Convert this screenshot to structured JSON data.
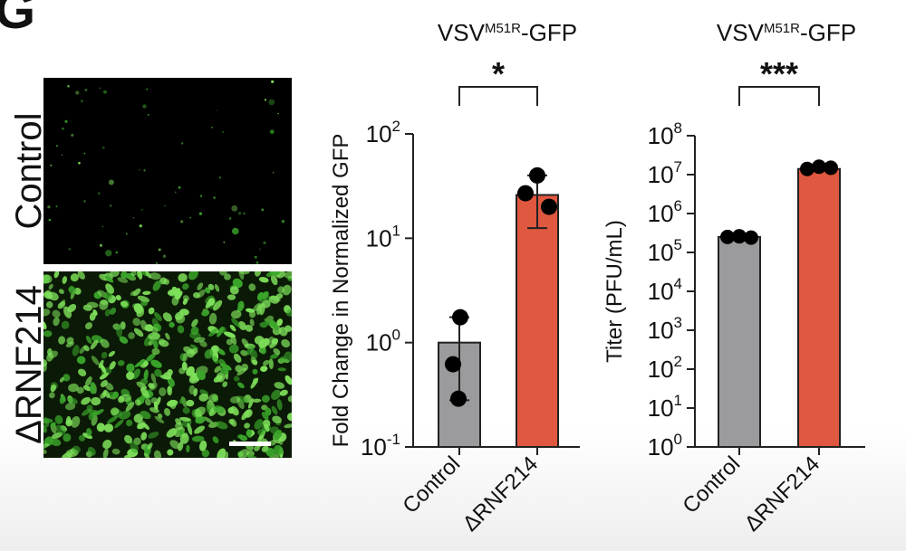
{
  "figure": {
    "panel_letter": "G",
    "micrographs": [
      {
        "label": "Control",
        "scale_bar": false
      },
      {
        "label": "ΔRNF214",
        "scale_bar": true
      }
    ]
  },
  "colors": {
    "control_bar": "#9b9b9e",
    "rnf_bar": "#e0583f",
    "gfp_bright": "#7ee05a",
    "gfp_dim": "#3aa52a"
  },
  "chart_data": [
    {
      "type": "bar",
      "title": "VSV",
      "title_sup": "M51R",
      "title_suffix": "-GFP",
      "ylabel": "Fold Change in Normalized GFP",
      "yscale": "log",
      "ylim": [
        0.1,
        100
      ],
      "yticks": [
        {
          "base": "10",
          "exp": "-1",
          "value": 0.1
        },
        {
          "base": "10",
          "exp": "0",
          "value": 1
        },
        {
          "base": "10",
          "exp": "1",
          "value": 10
        },
        {
          "base": "10",
          "exp": "2",
          "value": 100
        }
      ],
      "categories": [
        "Control",
        "ΔRNF214"
      ],
      "values": [
        1.0,
        26
      ],
      "error_low": [
        0.28,
        12.5
      ],
      "error_high": [
        1.75,
        40
      ],
      "points": [
        [
          1.75,
          0.62,
          0.29
        ],
        [
          40,
          27,
          20
        ]
      ],
      "bar_colors": [
        "#9b9b9e",
        "#e0583f"
      ],
      "significance": "*"
    },
    {
      "type": "bar",
      "title": "VSV",
      "title_sup": "M51R",
      "title_suffix": "-GFP",
      "ylabel": "Titer (PFU/mL)",
      "yscale": "log",
      "ylim": [
        1,
        100000000
      ],
      "yticks": [
        {
          "base": "10",
          "exp": "0",
          "value": 1
        },
        {
          "base": "10",
          "exp": "1",
          "value": 10
        },
        {
          "base": "10",
          "exp": "2",
          "value": 100
        },
        {
          "base": "10",
          "exp": "3",
          "value": 1000
        },
        {
          "base": "10",
          "exp": "4",
          "value": 10000
        },
        {
          "base": "10",
          "exp": "5",
          "value": 100000
        },
        {
          "base": "10",
          "exp": "6",
          "value": 1000000
        },
        {
          "base": "10",
          "exp": "7",
          "value": 10000000
        },
        {
          "base": "10",
          "exp": "8",
          "value": 100000000
        }
      ],
      "categories": [
        "Control",
        "ΔRNF214"
      ],
      "values": [
        250000,
        14000000
      ],
      "points": [
        [
          250000,
          260000,
          240000
        ],
        [
          14000000,
          16000000,
          15000000
        ]
      ],
      "bar_colors": [
        "#9b9b9e",
        "#e0583f"
      ],
      "significance": "***"
    }
  ]
}
